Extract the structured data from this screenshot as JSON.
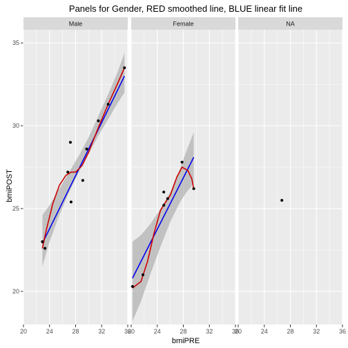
{
  "chart_data": {
    "type": "scatter",
    "title": "Panels for Gender, RED smoothed line, BLUE linear fit line",
    "xlabel": "bmiPRE",
    "ylabel": "bmiPOST",
    "xlim": [
      20,
      36
    ],
    "ylim": [
      18,
      35.8
    ],
    "x_ticks": [
      20,
      24,
      28,
      32,
      36
    ],
    "y_ticks": [
      20,
      25,
      30,
      35
    ],
    "grid": true,
    "colors": {
      "panel_bg": "#ebebeb",
      "strip_bg": "#d9d9d9",
      "grid": "#ffffff",
      "points": "#000000",
      "smooth_line": "#cc0000",
      "linear_fit": "#0000ee",
      "ribbon": "#b3b3b3"
    },
    "panels": [
      {
        "label": "Male",
        "points": [
          {
            "x": 22.9,
            "y": 23.0
          },
          {
            "x": 23.3,
            "y": 22.6
          },
          {
            "x": 26.8,
            "y": 27.2
          },
          {
            "x": 27.2,
            "y": 29.0
          },
          {
            "x": 27.3,
            "y": 25.4
          },
          {
            "x": 29.1,
            "y": 26.7
          },
          {
            "x": 29.7,
            "y": 28.6
          },
          {
            "x": 31.5,
            "y": 30.3
          },
          {
            "x": 33.0,
            "y": 31.3
          },
          {
            "x": 35.5,
            "y": 33.5
          }
        ],
        "linear_fit": [
          [
            22.9,
            22.9
          ],
          [
            35.5,
            33.0
          ]
        ],
        "smooth": [
          [
            22.9,
            22.6
          ],
          [
            23.5,
            23.7
          ],
          [
            24.5,
            25.3
          ],
          [
            25.5,
            26.4
          ],
          [
            26.5,
            27.0
          ],
          [
            27.3,
            27.2
          ],
          [
            28.0,
            27.2
          ],
          [
            29.0,
            27.6
          ],
          [
            30.0,
            28.4
          ],
          [
            31.5,
            29.9
          ],
          [
            33.0,
            31.3
          ],
          [
            34.5,
            32.6
          ],
          [
            35.5,
            33.5
          ]
        ],
        "ribbon": {
          "x": [
            22.9,
            24.0,
            25.5,
            27.0,
            28.5,
            30.0,
            31.5,
            33.0,
            34.5,
            35.5
          ],
          "lower": [
            21.5,
            23.0,
            24.6,
            26.0,
            27.2,
            28.3,
            29.4,
            30.4,
            31.4,
            32.0
          ],
          "upper": [
            24.6,
            25.2,
            26.2,
            27.2,
            28.2,
            29.3,
            30.6,
            31.9,
            33.3,
            34.4
          ]
        }
      },
      {
        "label": "Female",
        "points": [
          {
            "x": 20.2,
            "y": 20.3
          },
          {
            "x": 21.8,
            "y": 21.0
          },
          {
            "x": 25.0,
            "y": 25.2
          },
          {
            "x": 25.0,
            "y": 26.0
          },
          {
            "x": 25.6,
            "y": 25.6
          },
          {
            "x": 27.8,
            "y": 27.8
          },
          {
            "x": 29.6,
            "y": 26.2
          }
        ],
        "linear_fit": [
          [
            20.2,
            20.8
          ],
          [
            29.6,
            28.1
          ]
        ],
        "smooth": [
          [
            20.2,
            20.2
          ],
          [
            21.5,
            20.6
          ],
          [
            22.5,
            21.8
          ],
          [
            23.5,
            23.5
          ],
          [
            24.5,
            24.9
          ],
          [
            25.3,
            25.4
          ],
          [
            26.0,
            25.8
          ],
          [
            27.0,
            26.9
          ],
          [
            27.8,
            27.5
          ],
          [
            28.7,
            27.3
          ],
          [
            29.3,
            26.8
          ],
          [
            29.6,
            26.2
          ]
        ],
        "ribbon": {
          "x": [
            20.2,
            21.5,
            23.0,
            24.5,
            26.0,
            27.5,
            28.5,
            29.6
          ],
          "lower": [
            18.2,
            19.4,
            21.1,
            22.7,
            24.2,
            25.4,
            26.0,
            26.5
          ],
          "upper": [
            23.0,
            23.4,
            24.1,
            25.0,
            26.0,
            27.4,
            28.5,
            29.6
          ]
        }
      },
      {
        "label": "NA",
        "points": [
          {
            "x": 26.7,
            "y": 25.5
          }
        ],
        "linear_fit": [],
        "smooth": [],
        "ribbon": null
      }
    ]
  }
}
